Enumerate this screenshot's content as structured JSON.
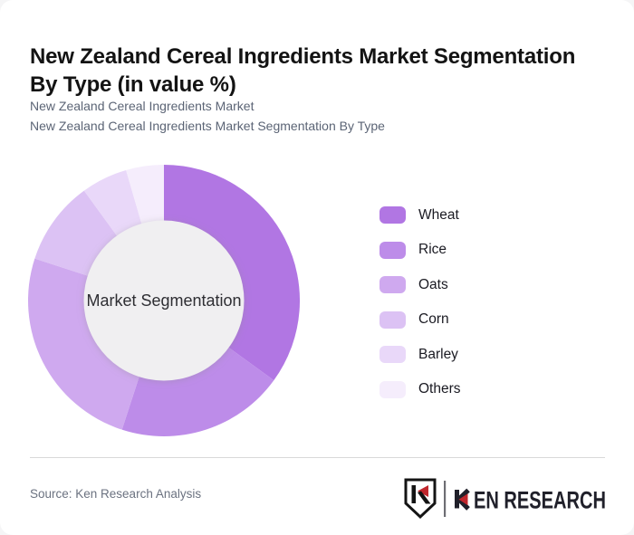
{
  "header": {
    "title_line1": "New Zealand Cereal Ingredients Market Segmentation",
    "title_line2": "By Type (in value %)",
    "subtitle1": "New Zealand Cereal Ingredients Market",
    "subtitle2": "New Zealand Cereal Ingredients Market Segmentation By Type"
  },
  "chart_data": {
    "type": "pie",
    "variant": "donut",
    "title": "New Zealand Cereal Ingredients Market Segmentation By Type (in value %)",
    "center_label": "Market Segmentation",
    "categories": [
      "Wheat",
      "Rice",
      "Oats",
      "Corn",
      "Barley",
      "Others"
    ],
    "values": [
      35,
      20,
      25,
      10,
      5.5,
      4.5
    ],
    "colors": [
      "#b176e3",
      "#bd8ce9",
      "#cfa9ef",
      "#dcc2f4",
      "#e9d8f9",
      "#f5edfc"
    ],
    "legend_position": "right",
    "start_angle_deg_from_top": 0,
    "direction": "clockwise",
    "inner_radius_ratio": 0.59,
    "center_circle_color": "#f0eff1",
    "data_labels_shown": false
  },
  "footer": {
    "source": "Source: Ken Research Analysis",
    "logo": {
      "brand": "KEN RESEARCH",
      "monogram_letter": "K",
      "wordmark_rest": "EN RESEARCH",
      "accent_color": "#c0272d",
      "text_color": "#20202a"
    }
  }
}
